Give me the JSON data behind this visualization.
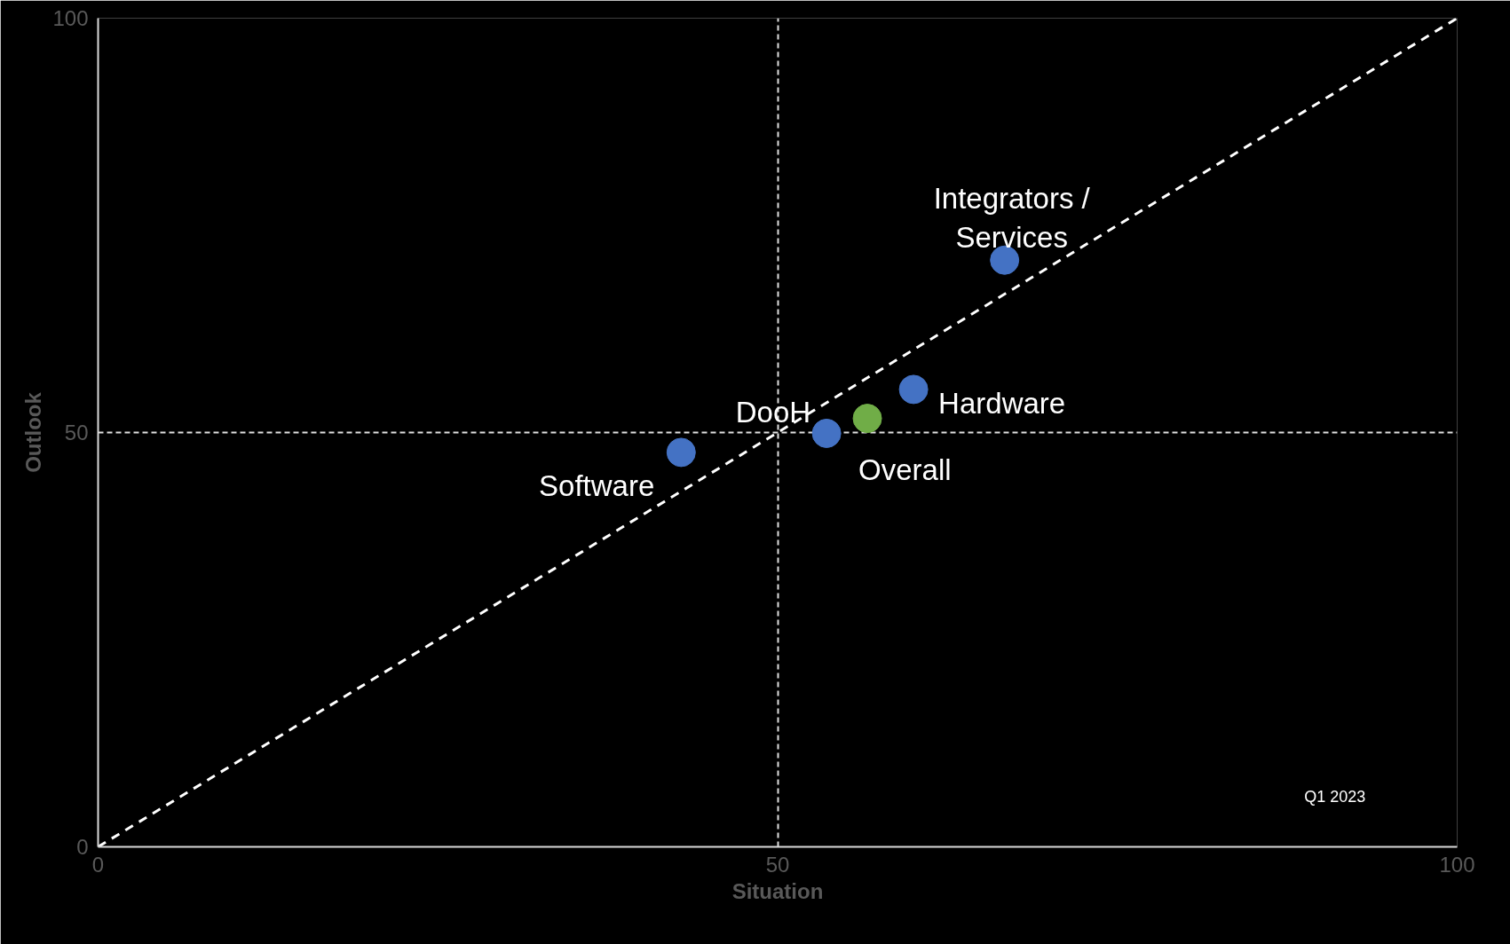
{
  "chart_data": {
    "type": "scatter",
    "xlabel": "Situation",
    "ylabel": "Outlook",
    "xlim": [
      0,
      100
    ],
    "ylim": [
      0,
      100
    ],
    "xticks": [
      0,
      50,
      100
    ],
    "yticks": [
      0,
      50,
      100
    ],
    "grid": true,
    "marker": "circle",
    "series": [
      {
        "type": "line",
        "color": "#ffffff",
        "line_style": "dashed",
        "marker": "none",
        "x": [
          0,
          100
        ],
        "values": [
          0,
          100
        ]
      },
      {
        "name": "Software",
        "color": "#4472c4",
        "x": [
          42.9
        ],
        "values": [
          47.6
        ]
      },
      {
        "name": "DooH",
        "color": "#4472c4",
        "x": [
          53.6
        ],
        "values": [
          49.9
        ]
      },
      {
        "name": "Overall",
        "color": "#70ad47",
        "x": [
          56.6
        ],
        "values": [
          51.7
        ]
      },
      {
        "name": "Hardware",
        "color": "#4472c4",
        "x": [
          60.0
        ],
        "values": [
          55.2
        ]
      },
      {
        "name": "Integrators / Services",
        "color": "#4472c4",
        "x": [
          66.7
        ],
        "values": [
          70.8
        ]
      }
    ],
    "annotations": [
      "Q1 2023"
    ]
  }
}
